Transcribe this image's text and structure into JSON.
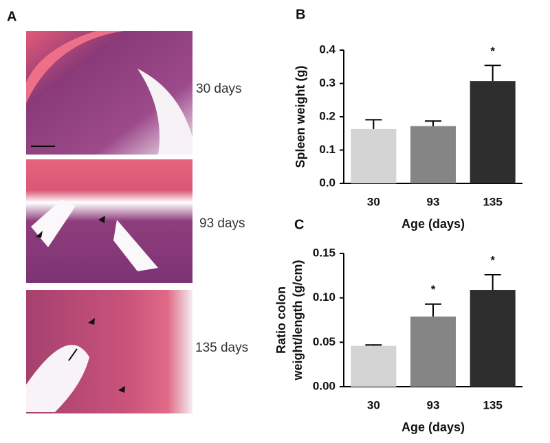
{
  "panels": {
    "A": {
      "label": "A",
      "images": [
        {
          "label": "30 days"
        },
        {
          "label": "93 days"
        },
        {
          "label": "135 days"
        }
      ]
    },
    "B": {
      "label": "B"
    },
    "C": {
      "label": "C"
    }
  },
  "chart_data": [
    {
      "type": "bar",
      "ylabel": [
        "Spleen weight (g)"
      ],
      "xlabel": "Age (days)",
      "categories": [
        "30",
        "93",
        "135"
      ],
      "values": [
        0.163,
        0.172,
        0.307
      ],
      "errors": [
        0.028,
        0.015,
        0.047
      ],
      "colors": [
        "#d4d4d4",
        "#858585",
        "#2e2e2e"
      ],
      "significance": [
        null,
        null,
        "*"
      ],
      "ylim": [
        0,
        0.4
      ],
      "yticks": [
        {
          "value": 0,
          "label": "0.0"
        },
        0.1,
        0.2,
        0.3,
        0.4
      ]
    },
    {
      "type": "bar",
      "ylabel": [
        "Ratio colon",
        "weight/length (g/cm)"
      ],
      "xlabel": "Age (days)",
      "categories": [
        "30",
        "93",
        "135"
      ],
      "values": [
        0.046,
        0.079,
        0.109
      ],
      "errors": [
        0.001,
        0.014,
        0.017
      ],
      "colors": [
        "#d4d4d4",
        "#858585",
        "#2e2e2e"
      ],
      "significance": [
        null,
        "*",
        "*"
      ],
      "ylim": [
        0,
        0.15
      ],
      "yticks": [
        {
          "value": 0,
          "label": "0.00"
        },
        {
          "value": 0.05,
          "label": "0.05"
        },
        {
          "value": 0.1,
          "label": "0.10"
        },
        {
          "value": 0.15,
          "label": "0.15"
        }
      ]
    }
  ]
}
